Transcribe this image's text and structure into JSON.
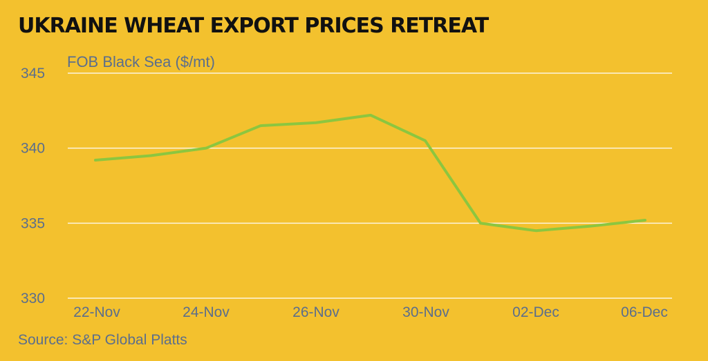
{
  "chart_data": {
    "type": "line",
    "title": "UKRAINE WHEAT EXPORT PRICES RETREAT",
    "ylabel": "FOB Black Sea ($/mt)",
    "xlabel": "",
    "source": "Source: S&P Global Platts",
    "ylim": [
      330,
      345
    ],
    "yticks": [
      "345",
      "340",
      "335",
      "330"
    ],
    "ytick_values": [
      345,
      340,
      335,
      330
    ],
    "grid": true,
    "legend": "none",
    "x_tick_labels": [
      "22-Nov",
      "24-Nov",
      "26-Nov",
      "30-Nov",
      "02-Dec",
      "06-Dec"
    ],
    "series": [
      {
        "values": [
          339.2,
          339.5,
          340.0,
          341.5,
          341.7,
          342.2,
          340.5,
          335.0,
          334.5,
          334.8,
          335.2
        ],
        "color": "#8CC63F"
      }
    ]
  },
  "colors": {
    "background": "#F3C12E",
    "title": "#111111",
    "axis_text": "#5B6E8C",
    "grid": "#FFFFFF",
    "line": "#8CC63F"
  }
}
